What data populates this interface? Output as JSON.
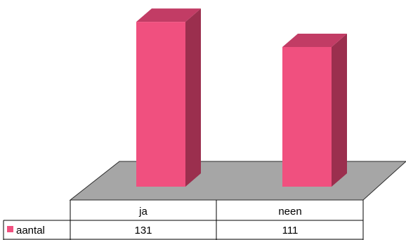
{
  "chart_data": {
    "type": "bar",
    "style": "3d-column-with-data-table",
    "categories": [
      "ja",
      "neen"
    ],
    "series": [
      {
        "name": "aantal",
        "values": [
          131,
          111
        ],
        "color": "#f0507f"
      }
    ],
    "ylim": [
      0,
      140
    ],
    "grid": false,
    "legend": "data-table-row-left",
    "colors": {
      "bar_front": "#f0507f",
      "bar_side": "#9b2f4e",
      "bar_top": "#c23c65",
      "floor": "#a6a6a6",
      "floor_edge": "#2b2b2b",
      "table_line": "#000000"
    }
  }
}
